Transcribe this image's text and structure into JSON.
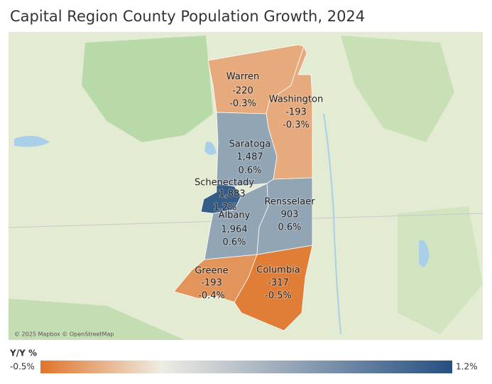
{
  "title": "Capital Region County Population Growth, 2024",
  "attribution": "© 2025 Mapbox © OpenStreetMap",
  "legend": {
    "title": "Y/Y %",
    "min": {
      "value": -0.5,
      "label": "-0.5%"
    },
    "max": {
      "value": 1.2,
      "label": "1.2%"
    }
  },
  "counties": [
    {
      "name": "Warren",
      "change": -220,
      "pct": {
        "value": -0.3,
        "label": "-0.3%"
      }
    },
    {
      "name": "Washington",
      "change": -193,
      "pct": {
        "value": -0.3,
        "label": "-0.3%"
      }
    },
    {
      "name": "Saratoga",
      "change": {
        "value": 1487,
        "label": "1,487"
      },
      "pct": {
        "value": 0.6,
        "label": "0.6%"
      }
    },
    {
      "name": "Schenectady",
      "change": {
        "value": 1883,
        "label": "1,883"
      },
      "pct": {
        "value": 1.2,
        "label": "1.2%"
      }
    },
    {
      "name": "Albany",
      "change": {
        "value": 1964,
        "label": "1,964"
      },
      "pct": {
        "value": 0.6,
        "label": "0.6%"
      }
    },
    {
      "name": "Rensselaer",
      "change": 903,
      "pct": {
        "value": 0.6,
        "label": "0.6%"
      }
    },
    {
      "name": "Greene",
      "change": -193,
      "pct": {
        "value": -0.4,
        "label": "-0.4%"
      }
    },
    {
      "name": "Columbia",
      "change": -317,
      "pct": {
        "value": -0.5,
        "label": "-0.5%"
      }
    }
  ]
}
